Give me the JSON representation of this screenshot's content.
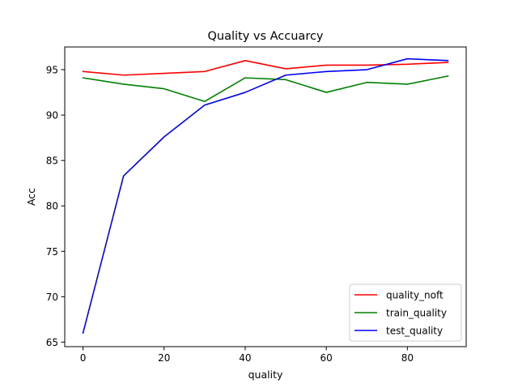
{
  "chart_data": {
    "type": "line",
    "title": "Quality vs Accuarcy",
    "xlabel": "quality",
    "ylabel": "Acc",
    "x": [
      0,
      10,
      20,
      30,
      40,
      50,
      60,
      70,
      80,
      90
    ],
    "xlim": [
      -4.5,
      94.5
    ],
    "ylim": [
      64.5,
      97.5
    ],
    "xticks": [
      0,
      20,
      40,
      60,
      80
    ],
    "yticks": [
      65,
      70,
      75,
      80,
      85,
      90,
      95
    ],
    "grid": false,
    "legend_position": "lower right",
    "series": [
      {
        "name": "quality_noft",
        "color": "#ff0000",
        "values": [
          94.8,
          94.4,
          94.6,
          94.8,
          96.0,
          95.1,
          95.5,
          95.5,
          95.6,
          95.8
        ]
      },
      {
        "name": "train_quality",
        "color": "#008000",
        "values": [
          94.1,
          93.4,
          92.9,
          91.5,
          94.1,
          93.9,
          92.5,
          93.6,
          93.4,
          94.3
        ]
      },
      {
        "name": "test_quality",
        "color": "#0000ff",
        "values": [
          66.0,
          83.3,
          87.6,
          91.1,
          92.5,
          94.4,
          94.8,
          95.0,
          96.2,
          96.0
        ]
      }
    ]
  }
}
